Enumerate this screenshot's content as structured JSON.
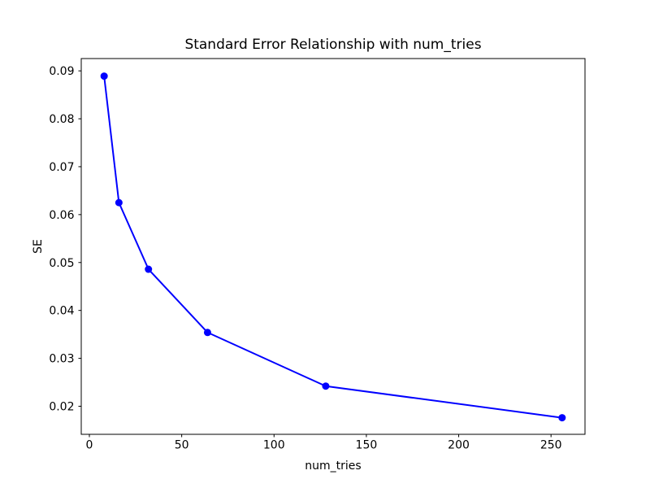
{
  "chart_data": {
    "type": "line",
    "title": "Standard Error Relationship with num_tries",
    "xlabel": "num_tries",
    "ylabel": "SE",
    "series": [
      {
        "name": "SE",
        "x": [
          8,
          16,
          32,
          64,
          128,
          256
        ],
        "y": [
          0.0889,
          0.0625,
          0.0486,
          0.0354,
          0.0242,
          0.0176
        ]
      }
    ],
    "x_ticks": [
      0,
      50,
      100,
      150,
      200,
      250
    ],
    "y_ticks": [
      0.02,
      0.03,
      0.04,
      0.05,
      0.06,
      0.07,
      0.08,
      0.09
    ],
    "y_tick_decimals": 2,
    "xlim": [
      -4.4,
      268.4
    ],
    "ylim": [
      0.01414,
      0.09257
    ],
    "grid": false,
    "legend_position": "none",
    "line_color": "#0000ff",
    "marker": "circle",
    "spine_color": "#000000",
    "background_color": "#ffffff"
  }
}
